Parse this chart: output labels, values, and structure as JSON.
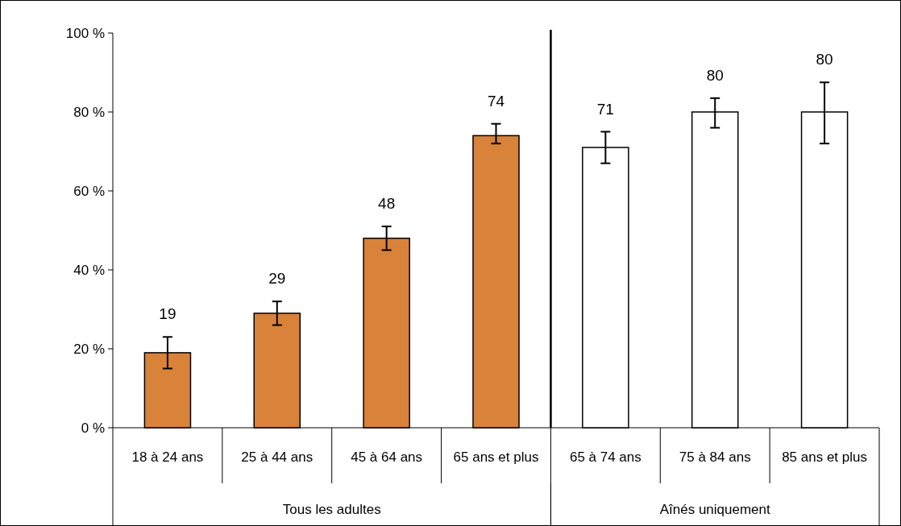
{
  "chart_data": {
    "type": "bar",
    "categories": [
      "18 à 24 ans",
      "25 à 44 ans",
      "45 à 64 ans",
      "65 ans et plus",
      "65 à 74 ans",
      "75 à 84 ans",
      "85 ans et plus"
    ],
    "values": [
      19,
      29,
      48,
      74,
      71,
      80,
      80
    ],
    "colors": [
      "#d9823a",
      "#d9823a",
      "#d9823a",
      "#d9823a",
      "#ffffff",
      "#ffffff",
      "#ffffff"
    ],
    "errors": [
      [
        15,
        23
      ],
      [
        26,
        32
      ],
      [
        45,
        51
      ],
      [
        72,
        77
      ],
      [
        67,
        75
      ],
      [
        76,
        83.5
      ],
      [
        72,
        87.5
      ]
    ],
    "data_labels": true,
    "ylim": [
      0,
      100
    ],
    "yticks": [
      {
        "value": 0,
        "label": "0 %"
      },
      {
        "value": 20,
        "label": "20 %"
      },
      {
        "value": 40,
        "label": "40 %"
      },
      {
        "value": 60,
        "label": "60 %"
      },
      {
        "value": 80,
        "label": "80 %"
      },
      {
        "value": 100,
        "label": "100 %"
      }
    ],
    "grid": false,
    "annotations": [
      "Tous les adultes",
      "Aînés uniquement"
    ]
  }
}
